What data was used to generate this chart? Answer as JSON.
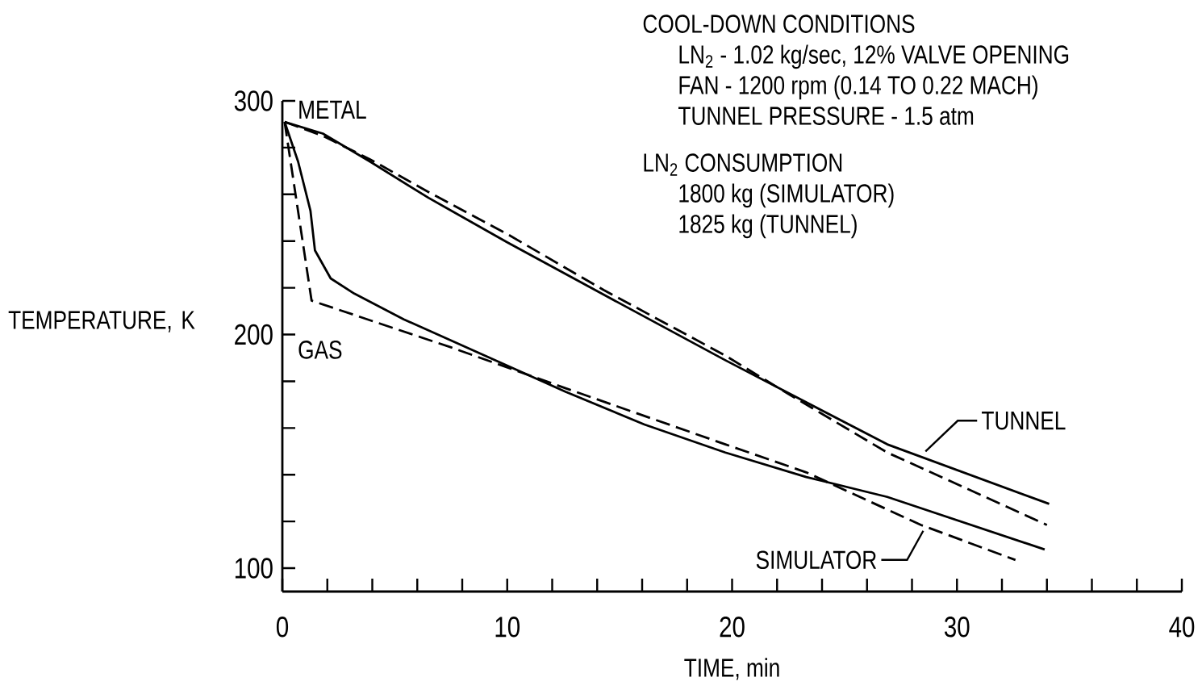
{
  "chart_data": {
    "type": "line",
    "xlabel": "TIME, min",
    "ylabel": "TEMPERATURE, K",
    "xlim": [
      0,
      40
    ],
    "ylim": [
      90,
      300
    ],
    "xticks": [
      0,
      {
        "value": 2,
        "label": null
      },
      {
        "value": 4,
        "label": null
      },
      {
        "value": 6,
        "label": null
      },
      {
        "value": 8,
        "label": null
      },
      10,
      {
        "value": 12,
        "label": null
      },
      {
        "value": 14,
        "label": null
      },
      {
        "value": 16,
        "label": null
      },
      {
        "value": 18,
        "label": null
      },
      20,
      {
        "value": 22,
        "label": null
      },
      {
        "value": 24,
        "label": null
      },
      {
        "value": 26,
        "label": null
      },
      {
        "value": 28,
        "label": null
      },
      30,
      {
        "value": 32,
        "label": null
      },
      {
        "value": 34,
        "label": null
      },
      {
        "value": 36,
        "label": null
      },
      {
        "value": 38,
        "label": null
      },
      40
    ],
    "yticks": [
      100,
      {
        "value": 120,
        "label": null
      },
      {
        "value": 140,
        "label": null
      },
      {
        "value": 160,
        "label": null
      },
      {
        "value": 180,
        "label": null
      },
      200,
      {
        "value": 220,
        "label": null
      },
      {
        "value": 240,
        "label": null
      },
      {
        "value": 260,
        "label": null
      },
      {
        "value": 280,
        "label": null
      },
      300
    ],
    "series": [
      {
        "color": "#000000",
        "line_style": "solid",
        "x": [
          0.1,
          1.8,
          3.9,
          6.5,
          10,
          14.3,
          19.7,
          23.3,
          26.9,
          34.1
        ],
        "values": [
          291,
          286,
          274,
          258.5,
          239.5,
          217,
          189,
          171,
          153,
          127.5
        ]
      },
      {
        "color": "#000000",
        "line_style": "dashed",
        "x": [
          0.1,
          1.8,
          3.9,
          6.5,
          10,
          14.3,
          19.7,
          22.6,
          26.9,
          34
        ],
        "values": [
          291,
          285,
          275,
          261,
          243,
          219,
          191,
          174,
          149.5,
          118.5
        ]
      },
      {
        "color": "#000000",
        "line_style": "solid",
        "x": [
          0.1,
          0.7,
          1.25,
          1.45,
          2.15,
          3.2,
          5.4,
          9,
          12.6,
          16.1,
          19.7,
          23.3,
          26.9,
          33.9
        ],
        "values": [
          291,
          274,
          253,
          236,
          224,
          217.5,
          206.5,
          191,
          175.5,
          161.5,
          149.5,
          139,
          130.5,
          108
        ]
      },
      {
        "color": "#000000",
        "line_style": "dashed",
        "x": [
          0.1,
          1.3,
          7.5,
          12.6,
          19.7,
          23.3,
          28.4,
          32.6
        ],
        "values": [
          291,
          214.5,
          194.5,
          177,
          153,
          141,
          118.5,
          103.5
        ]
      }
    ],
    "annotations": [
      "COOL-DOWN CONDITIONS",
      "LN$_{2}$ - 1.02 kg/sec, 12% VALVE OPENING",
      "FAN - 1200 rpm (0.14 TO 0.22 MACH)",
      "TUNNEL PRESSURE - 1.5 atm",
      "LN$_{2}$ CONSUMPTION",
      "1800 kg (SIMULATOR)",
      "1825 kg (TUNNEL)",
      "METAL",
      "GAS",
      "TUNNEL",
      "SIMULATOR"
    ]
  }
}
